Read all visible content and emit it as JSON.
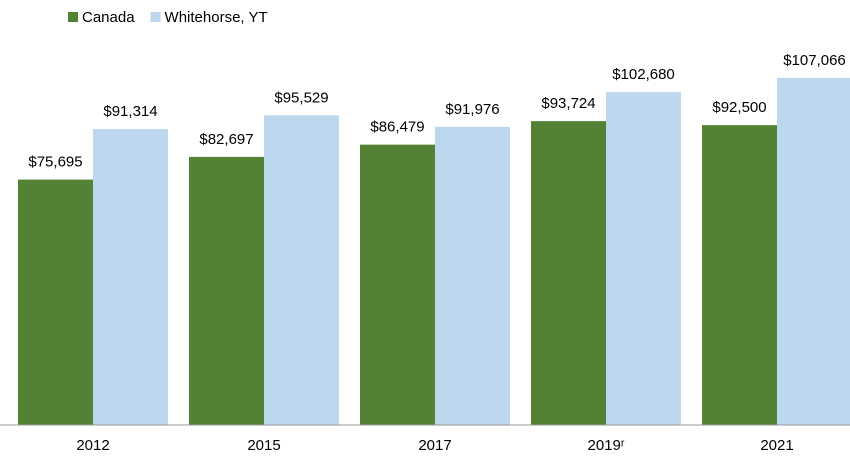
{
  "chart_data": {
    "type": "bar",
    "categories": [
      "2012",
      "2015",
      "2017",
      "2019ʳ",
      "2021"
    ],
    "series": [
      {
        "name": "Canada",
        "color": "#548235",
        "values": [
          75695,
          82697,
          86479,
          93724,
          92500
        ],
        "value_labels": [
          "$75,695",
          "$82,697",
          "$86,479",
          "$93,724",
          "$92,500"
        ]
      },
      {
        "name": "Whitehorse, YT",
        "color": "#bdd7ee",
        "values": [
          91314,
          95529,
          91976,
          102680,
          107066
        ],
        "value_labels": [
          "$91,314",
          "$95,529",
          "$91,976",
          "$102,680",
          "$107,066"
        ]
      }
    ],
    "legend": "top-left"
  }
}
